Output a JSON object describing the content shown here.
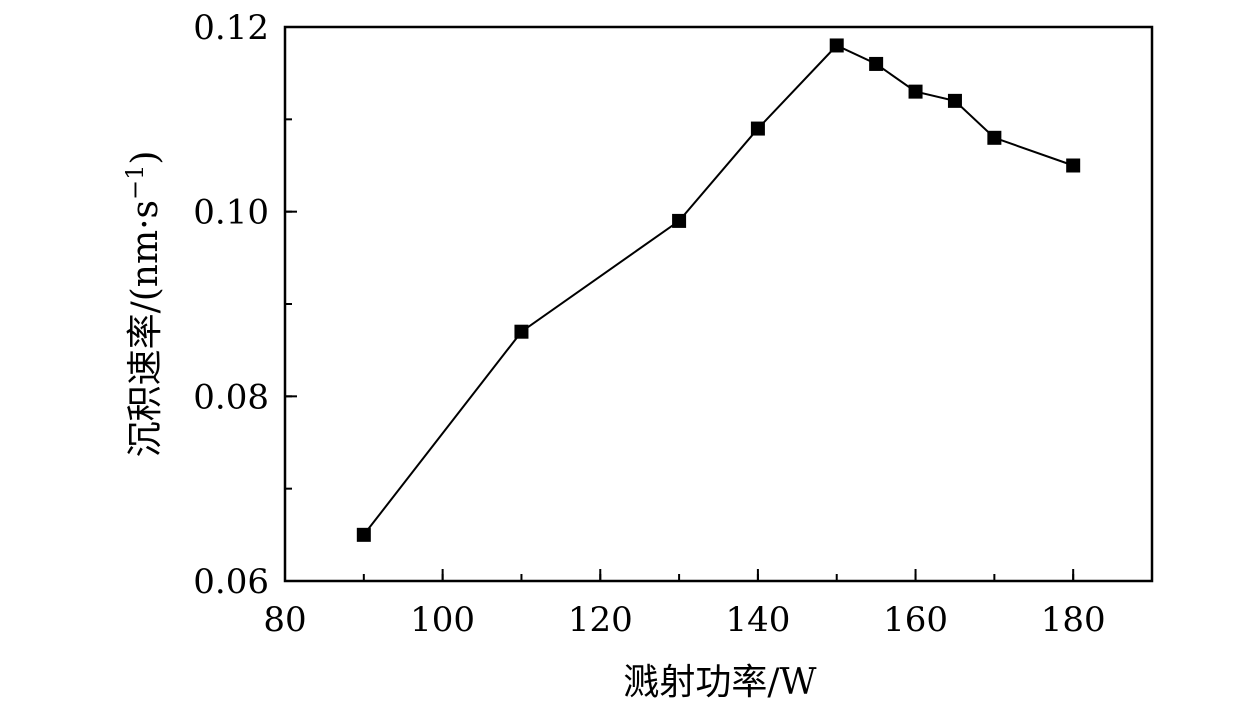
{
  "chart_data": {
    "type": "line",
    "title": "",
    "xlabel": "溅射功率/W",
    "ylabel_text": "沉积速率/(nm·s",
    "ylabel_sup": "−1",
    "ylabel_close": ")",
    "xlim": [
      80,
      190
    ],
    "ylim": [
      0.06,
      0.12
    ],
    "x_major_ticks": [
      80,
      100,
      120,
      140,
      160,
      180
    ],
    "x_tick_labels": [
      "80",
      "100",
      "120",
      "140",
      "160",
      "180"
    ],
    "x_minor_step": 10,
    "y_major_ticks": [
      0.06,
      0.08,
      0.1,
      0.12
    ],
    "y_tick_labels": [
      "0.06",
      "0.08",
      "0.10",
      "0.12"
    ],
    "y_minor_step": 0.01,
    "grid": false,
    "marker": "square",
    "line_color": "#000000",
    "series": [
      {
        "x": [
          90,
          110,
          130,
          140,
          150,
          155,
          160,
          165,
          170,
          180
        ],
        "y": [
          0.065,
          0.087,
          0.099,
          0.109,
          0.118,
          0.116,
          0.113,
          0.112,
          0.108,
          0.105
        ]
      }
    ]
  }
}
